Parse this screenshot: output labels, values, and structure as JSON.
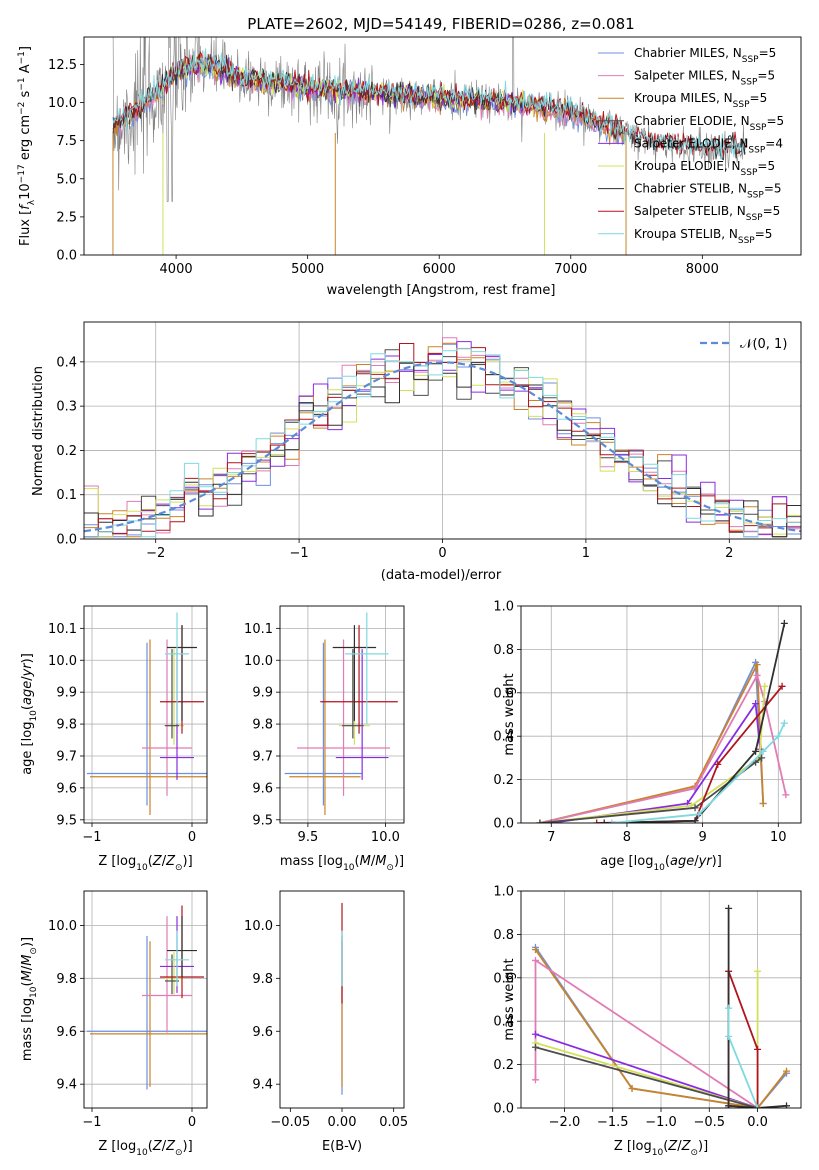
{
  "figure_title": "PLATE=2602, MJD=54149, FIBERID=0286, z=0.081",
  "colors": {
    "Chabrier MILES": "#6f8fe0",
    "Salpeter MILES": "#e27bb5",
    "Kroupa MILES": "#c9842a",
    "Chabrier ELODIE": "#4d4d4d",
    "Salpeter ELODIE": "#8a2be2",
    "Kroupa ELODIE": "#d2e05a",
    "Chabrier STELIB": "#303030",
    "Salpeter STELIB": "#b0141d",
    "Kroupa STELIB": "#7fd9df",
    "data": "#808080",
    "gauss": "#5b8bd6"
  },
  "chart_data": [
    {
      "type": "line",
      "id": "spectrum",
      "xlabel": "wavelength [Angstrom, rest frame]",
      "ylabel": "Flux [f_λ 10^-17 erg cm^-2 s^-1 A^-1]",
      "xlim": [
        3300,
        8750
      ],
      "ylim": [
        0,
        14.3
      ],
      "xticks": [
        4000,
        5000,
        6000,
        7000,
        8000
      ],
      "yticks": [
        0.0,
        2.5,
        5.0,
        7.5,
        10.0,
        12.5
      ],
      "legend_position": "upper-right",
      "legend": [
        {
          "label": "Chabrier MILES, N",
          "sub": "SSP",
          "suffix": "=5"
        },
        {
          "label": "Salpeter MILES, N",
          "sub": "SSP",
          "suffix": "=5"
        },
        {
          "label": "Kroupa MILES, N",
          "sub": "SSP",
          "suffix": "=5"
        },
        {
          "label": "Chabrier ELODIE, N",
          "sub": "SSP",
          "suffix": "=5"
        },
        {
          "label": "Salpeter ELODIE, N",
          "sub": "SSP",
          "suffix": "=4"
        },
        {
          "label": "Kroupa ELODIE, N",
          "sub": "SSP",
          "suffix": "=5"
        },
        {
          "label": "Chabrier STELIB, N",
          "sub": "SSP",
          "suffix": "=5"
        },
        {
          "label": "Salpeter STELIB, N",
          "sub": "SSP",
          "suffix": "=5"
        },
        {
          "label": "Kroupa STELIB, N",
          "sub": "SSP",
          "suffix": "=5"
        }
      ],
      "model_continuum": {
        "x": [
          3520,
          3700,
          3900,
          4000,
          4200,
          4500,
          5000,
          5500,
          6000,
          6500,
          7000,
          7300,
          7600,
          8000,
          8300
        ],
        "y": [
          8.5,
          9.5,
          11.0,
          12.0,
          12.6,
          11.6,
          11.0,
          10.6,
          10.3,
          10.0,
          9.4,
          8.4,
          7.4,
          7.0,
          6.9
        ]
      }
    },
    {
      "type": "line",
      "id": "residuals",
      "xlabel": "(data-model)/error",
      "ylabel": "Normed distribution",
      "xlim": [
        -2.5,
        2.5
      ],
      "ylim": [
        0,
        0.49
      ],
      "xticks": [
        -2,
        -1,
        0,
        1,
        2
      ],
      "xtick_labels": [
        "−2",
        "−1",
        "0",
        "1",
        "2"
      ],
      "yticks": [
        0.0,
        0.1,
        0.2,
        0.3,
        0.4
      ],
      "legend": "𝒩(0, 1)",
      "legend_position": "upper-right",
      "grid": true,
      "gaussian": {
        "mu": 0,
        "sigma": 1
      }
    },
    {
      "type": "scatter",
      "id": "age-vs-Z",
      "xlabel": "Z [log10(Z/Z⊙)]",
      "ylabel": "age [log10(age/yr)]",
      "xlim": [
        -1.08,
        0.15
      ],
      "ylim": [
        9.49,
        10.17
      ],
      "xticks": [
        -1,
        0
      ],
      "xtick_labels": [
        "−1",
        "0"
      ],
      "yticks": [
        9.5,
        9.6,
        9.7,
        9.8,
        9.9,
        10.0,
        10.1
      ],
      "grid": true,
      "points": [
        {
          "model": "Chabrier MILES",
          "x": -0.45,
          "xerr": 0.6,
          "y": 9.645,
          "yerr_lo": 0.1,
          "yerr_hi": 0.41
        },
        {
          "model": "Kroupa MILES",
          "x": -0.42,
          "xerr": 0.6,
          "y": 9.635,
          "yerr_lo": 0.12,
          "yerr_hi": 0.43
        },
        {
          "model": "Salpeter MILES",
          "x": -0.25,
          "xerr": 0.25,
          "y": 9.725,
          "yerr_lo": 0.15,
          "yerr_hi": 0.34
        },
        {
          "model": "Salpeter ELODIE",
          "x": -0.15,
          "xerr": 0.17,
          "y": 9.695,
          "yerr_lo": 0.07,
          "yerr_hi": 0.34
        },
        {
          "model": "Kroupa ELODIE",
          "x": -0.18,
          "xerr": 0.1,
          "y": 9.795,
          "yerr_lo": 0.06,
          "yerr_hi": 0.24
        },
        {
          "model": "Chabrier ELODIE",
          "x": -0.2,
          "xerr": 0.07,
          "y": 9.795,
          "yerr_lo": 0.04,
          "yerr_hi": 0.24
        },
        {
          "model": "Salpeter STELIB",
          "x": -0.1,
          "xerr": 0.22,
          "y": 9.87,
          "yerr_lo": 0.1,
          "yerr_hi": 0.24
        },
        {
          "model": "Chabrier STELIB",
          "x": -0.1,
          "xerr": 0.15,
          "y": 10.04,
          "yerr_lo": 0.23,
          "yerr_hi": 0.07
        },
        {
          "model": "Kroupa STELIB",
          "x": -0.15,
          "xerr": 0.12,
          "y": 10.02,
          "yerr_lo": 0.22,
          "yerr_hi": 0.13
        }
      ]
    },
    {
      "type": "scatter",
      "id": "age-vs-mass",
      "xlabel": "mass [log10(M/M⊙)]",
      "ylabel": "",
      "xlim": [
        9.32,
        10.12
      ],
      "ylim": [
        9.49,
        10.17
      ],
      "xticks": [
        9.5,
        10.0
      ],
      "xtick_labels": [
        "9.5",
        "10.0"
      ],
      "yticks": [
        9.5,
        9.6,
        9.7,
        9.8,
        9.9,
        10.0,
        10.1
      ],
      "grid": true,
      "points": [
        {
          "model": "Chabrier MILES",
          "x": 9.6,
          "xerr": 0.25,
          "y": 9.645,
          "yerr_lo": 0.1,
          "yerr_hi": 0.41
        },
        {
          "model": "Kroupa MILES",
          "x": 9.61,
          "xerr": 0.23,
          "y": 9.635,
          "yerr_lo": 0.12,
          "yerr_hi": 0.43
        },
        {
          "model": "Salpeter MILES",
          "x": 9.73,
          "xerr": 0.3,
          "y": 9.725,
          "yerr_lo": 0.15,
          "yerr_hi": 0.34
        },
        {
          "model": "Salpeter ELODIE",
          "x": 9.85,
          "xerr": 0.17,
          "y": 9.695,
          "yerr_lo": 0.07,
          "yerr_hi": 0.34
        },
        {
          "model": "Kroupa ELODIE",
          "x": 9.8,
          "xerr": 0.1,
          "y": 9.795,
          "yerr_lo": 0.06,
          "yerr_hi": 0.24
        },
        {
          "model": "Chabrier ELODIE",
          "x": 9.79,
          "xerr": 0.07,
          "y": 9.795,
          "yerr_lo": 0.04,
          "yerr_hi": 0.24
        },
        {
          "model": "Salpeter STELIB",
          "x": 9.83,
          "xerr": 0.25,
          "y": 9.87,
          "yerr_lo": 0.1,
          "yerr_hi": 0.24
        },
        {
          "model": "Chabrier STELIB",
          "x": 9.8,
          "xerr": 0.14,
          "y": 10.04,
          "yerr_lo": 0.23,
          "yerr_hi": 0.07
        },
        {
          "model": "Kroupa STELIB",
          "x": 9.88,
          "xerr": 0.14,
          "y": 10.02,
          "yerr_lo": 0.22,
          "yerr_hi": 0.13
        }
      ]
    },
    {
      "type": "line",
      "id": "weight-vs-age",
      "xlabel": "age [log10(age/yr)]",
      "ylabel": "mass weight",
      "xlim": [
        6.6,
        10.3
      ],
      "ylim": [
        0,
        1.0
      ],
      "xticks": [
        7,
        8,
        9,
        10
      ],
      "yticks": [
        0.0,
        0.2,
        0.4,
        0.6,
        0.8,
        1.0
      ],
      "grid": true,
      "series": [
        {
          "model": "Chabrier MILES",
          "x": [
            6.85,
            8.9,
            9.7,
            9.8
          ],
          "y": [
            0.0,
            0.16,
            0.74,
            0.09
          ]
        },
        {
          "model": "Kroupa MILES",
          "x": [
            6.85,
            8.9,
            9.72,
            9.8
          ],
          "y": [
            0.0,
            0.17,
            0.73,
            0.09
          ]
        },
        {
          "model": "Salpeter MILES",
          "x": [
            6.85,
            8.9,
            9.72,
            9.82,
            10.1
          ],
          "y": [
            0.0,
            0.16,
            0.68,
            0.56,
            0.13
          ]
        },
        {
          "model": "Salpeter ELODIE",
          "x": [
            7.0,
            8.8,
            9.7,
            9.76
          ],
          "y": [
            0.0,
            0.09,
            0.55,
            0.34
          ]
        },
        {
          "model": "Kroupa ELODIE",
          "x": [
            6.85,
            8.85,
            9.75,
            9.82
          ],
          "y": [
            0.0,
            0.08,
            0.3,
            0.63
          ]
        },
        {
          "model": "Chabrier ELODIE",
          "x": [
            6.85,
            8.9,
            9.7,
            9.78
          ],
          "y": [
            0.0,
            0.07,
            0.28,
            0.3
          ]
        },
        {
          "model": "Salpeter STELIB",
          "x": [
            7.6,
            8.9,
            9.2,
            10.05
          ],
          "y": [
            0.0,
            0.01,
            0.27,
            0.63
          ]
        },
        {
          "model": "Chabrier STELIB",
          "x": [
            7.7,
            8.9,
            9.7,
            10.08
          ],
          "y": [
            0.0,
            0.01,
            0.33,
            0.92
          ]
        },
        {
          "model": "Kroupa STELIB",
          "x": [
            7.8,
            8.95,
            9.8,
            10.0,
            10.08
          ],
          "y": [
            0.0,
            0.04,
            0.33,
            0.4,
            0.46
          ]
        }
      ]
    },
    {
      "type": "scatter",
      "id": "mass-vs-Z",
      "xlabel": "Z [log10(Z/Z⊙)]",
      "ylabel": "mass [log10(M/M⊙)]",
      "xlim": [
        -1.08,
        0.15
      ],
      "ylim": [
        9.31,
        10.13
      ],
      "xticks": [
        -1,
        0
      ],
      "xtick_labels": [
        "−1",
        "0"
      ],
      "yticks": [
        9.4,
        9.6,
        9.8,
        10.0
      ],
      "grid": true,
      "points": [
        {
          "model": "Chabrier MILES",
          "x": -0.45,
          "xerr": 0.6,
          "y": 9.6,
          "yerr_lo": 0.22,
          "yerr_hi": 0.36
        },
        {
          "model": "Kroupa MILES",
          "x": -0.42,
          "xerr": 0.6,
          "y": 9.59,
          "yerr_lo": 0.2,
          "yerr_hi": 0.35
        },
        {
          "model": "Salpeter MILES",
          "x": -0.25,
          "xerr": 0.25,
          "y": 9.735,
          "yerr_lo": 0.14,
          "yerr_hi": 0.3
        },
        {
          "model": "Salpeter ELODIE",
          "x": -0.15,
          "xerr": 0.17,
          "y": 9.845,
          "yerr_lo": 0.1,
          "yerr_hi": 0.19
        },
        {
          "model": "Kroupa ELODIE",
          "x": -0.18,
          "xerr": 0.1,
          "y": 9.8,
          "yerr_lo": 0.06,
          "yerr_hi": 0.1
        },
        {
          "model": "Chabrier ELODIE",
          "x": -0.2,
          "xerr": 0.07,
          "y": 9.79,
          "yerr_lo": 0.05,
          "yerr_hi": 0.1
        },
        {
          "model": "Salpeter STELIB",
          "x": -0.1,
          "xerr": 0.22,
          "y": 9.805,
          "yerr_lo": 0.08,
          "yerr_hi": 0.27
        },
        {
          "model": "Chabrier STELIB",
          "x": -0.1,
          "xerr": 0.15,
          "y": 9.905,
          "yerr_lo": 0.1,
          "yerr_hi": 0.13
        },
        {
          "model": "Kroupa STELIB",
          "x": -0.15,
          "xerr": 0.12,
          "y": 9.87,
          "yerr_lo": 0.1,
          "yerr_hi": 0.11
        }
      ]
    },
    {
      "type": "scatter",
      "id": "mass-vs-ebv",
      "xlabel": "E(B-V)",
      "ylabel": "",
      "xlim": [
        -0.06,
        0.06
      ],
      "ylim": [
        9.31,
        10.13
      ],
      "xticks": [
        -0.05,
        0.0,
        0.05
      ],
      "xtick_labels": [
        "−0.05",
        "0.00",
        "0.05"
      ],
      "yticks": [
        9.4,
        9.6,
        9.8,
        10.0
      ],
      "grid": false,
      "points": [
        {
          "model": "Chabrier MILES",
          "x": 0.0,
          "xerr": 0.0,
          "y": 9.6,
          "yerr_lo": 0.24,
          "yerr_hi": 0.36
        },
        {
          "model": "Kroupa MILES",
          "x": 0.0,
          "xerr": 0.0,
          "y": 9.59,
          "yerr_lo": 0.2,
          "yerr_hi": 0.35
        },
        {
          "model": "Salpeter STELIB",
          "x": 0.0,
          "xerr": 0.0,
          "y": 9.805,
          "yerr_lo": 0.1,
          "yerr_hi": 0.28
        },
        {
          "model": "Kroupa STELIB",
          "x": 0.0,
          "xerr": 0.0,
          "y": 9.87,
          "yerr_lo": 0.1,
          "yerr_hi": 0.11
        }
      ]
    },
    {
      "type": "line",
      "id": "weight-vs-Z",
      "xlabel": "Z [log10(Z/Z⊙)]",
      "ylabel": "mass weight",
      "xlim": [
        -2.45,
        0.45
      ],
      "ylim": [
        0,
        1.0
      ],
      "xticks": [
        -2.0,
        -1.5,
        -1.0,
        -0.5,
        0.0
      ],
      "xtick_labels": [
        "−2.0",
        "−1.5",
        "−1.0",
        "−0.5",
        "0.0"
      ],
      "yticks": [
        0.0,
        0.2,
        0.4,
        0.6,
        0.8,
        1.0
      ],
      "grid": true,
      "series": [
        {
          "model": "Chabrier MILES",
          "x": [
            -2.3,
            -1.3,
            0.0,
            0.3
          ],
          "y": [
            0.74,
            0.09,
            0.0,
            0.16
          ]
        },
        {
          "model": "Kroupa MILES",
          "x": [
            -2.3,
            -1.3,
            0.0,
            0.3
          ],
          "y": [
            0.73,
            0.09,
            0.0,
            0.17
          ]
        },
        {
          "model": "Salpeter MILES",
          "x": [
            -2.3,
            -2.3,
            0.0
          ],
          "y": [
            0.13,
            0.68,
            0.0
          ]
        },
        {
          "model": "Salpeter ELODIE",
          "x": [
            -2.3,
            0.0
          ],
          "y": [
            0.34,
            0.0
          ]
        },
        {
          "model": "Kroupa ELODIE",
          "x": [
            -2.3,
            0.0,
            0.0
          ],
          "y": [
            0.3,
            0.0,
            0.63
          ]
        },
        {
          "model": "Chabrier ELODIE",
          "x": [
            -2.3,
            0.0
          ],
          "y": [
            0.28,
            0.0
          ]
        },
        {
          "model": "Salpeter STELIB",
          "x": [
            -0.3,
            -0.3,
            0.0,
            0.0
          ],
          "y": [
            0.0,
            0.63,
            0.27,
            0.0
          ]
        },
        {
          "model": "Chabrier STELIB",
          "x": [
            -0.3,
            -0.3,
            0.0,
            0.3
          ],
          "y": [
            0.92,
            0.01,
            0.0,
            0.01
          ]
        },
        {
          "model": "Kroupa STELIB",
          "x": [
            -0.3,
            -0.3,
            0.0
          ],
          "y": [
            0.46,
            0.33,
            0.0
          ]
        }
      ]
    }
  ]
}
